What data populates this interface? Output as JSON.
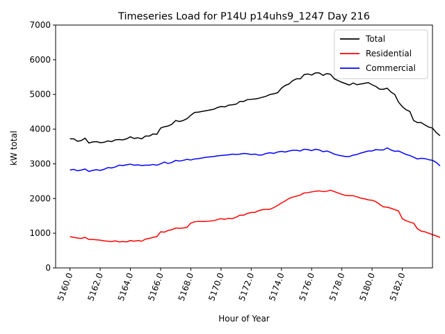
{
  "chart_data": {
    "type": "line",
    "title": "Timeseries Load for P14U p14uhs9_1247  Day 216",
    "xlabel": "Hour of Year",
    "ylabel": "kW total",
    "xlim": [
      5159.05,
      5184.0
    ],
    "ylim": [
      0,
      7000
    ],
    "xticks": [
      5160,
      5162,
      5164,
      5166,
      5168,
      5170,
      5172,
      5174,
      5176,
      5178,
      5180,
      5182
    ],
    "xtick_labels": [
      "5160.0",
      "5162.0",
      "5164.0",
      "5166.0",
      "5168.0",
      "5170.0",
      "5172.0",
      "5174.0",
      "5176.0",
      "5178.0",
      "5180.0",
      "5182.0"
    ],
    "yticks": [
      0,
      1000,
      2000,
      3000,
      4000,
      5000,
      6000,
      7000
    ],
    "ytick_labels": [
      "0",
      "1000",
      "2000",
      "3000",
      "4000",
      "5000",
      "6000",
      "7000"
    ],
    "x_start": 5160,
    "x_step": 0.25,
    "legend_position": "top-right",
    "grid": false,
    "series": [
      {
        "name": "Total",
        "color": "#000000",
        "values": [
          3720,
          3720,
          3650,
          3670,
          3740,
          3600,
          3630,
          3640,
          3610,
          3620,
          3660,
          3640,
          3690,
          3700,
          3690,
          3720,
          3780,
          3730,
          3750,
          3720,
          3800,
          3800,
          3860,
          3850,
          4030,
          4070,
          4090,
          4140,
          4250,
          4220,
          4250,
          4300,
          4400,
          4480,
          4490,
          4510,
          4530,
          4550,
          4570,
          4620,
          4650,
          4640,
          4690,
          4700,
          4720,
          4800,
          4800,
          4850,
          4860,
          4870,
          4890,
          4920,
          4950,
          5000,
          5020,
          5050,
          5180,
          5260,
          5300,
          5400,
          5450,
          5450,
          5570,
          5590,
          5560,
          5620,
          5620,
          5550,
          5600,
          5580,
          5450,
          5400,
          5350,
          5310,
          5270,
          5330,
          5280,
          5300,
          5320,
          5340,
          5280,
          5230,
          5150,
          5150,
          5180,
          5070,
          5000,
          4780,
          4650,
          4560,
          4510,
          4250,
          4190,
          4190,
          4120,
          4060,
          4030,
          3900,
          3810
        ]
      },
      {
        "name": "Residential",
        "color": "#ff0000",
        "values": [
          900,
          880,
          860,
          850,
          880,
          820,
          820,
          810,
          800,
          780,
          770,
          760,
          780,
          750,
          760,
          750,
          790,
          770,
          790,
          770,
          830,
          850,
          880,
          900,
          1040,
          1030,
          1080,
          1100,
          1150,
          1140,
          1150,
          1170,
          1290,
          1330,
          1340,
          1340,
          1340,
          1350,
          1360,
          1390,
          1420,
          1400,
          1430,
          1420,
          1460,
          1520,
          1520,
          1570,
          1600,
          1600,
          1650,
          1680,
          1690,
          1690,
          1740,
          1800,
          1870,
          1930,
          2000,
          2040,
          2070,
          2100,
          2160,
          2170,
          2190,
          2210,
          2220,
          2200,
          2210,
          2240,
          2200,
          2160,
          2120,
          2090,
          2080,
          2080,
          2050,
          2010,
          1990,
          1960,
          1950,
          1910,
          1830,
          1760,
          1750,
          1720,
          1680,
          1640,
          1420,
          1360,
          1320,
          1290,
          1130,
          1060,
          1040,
          1000,
          960,
          920,
          880
        ]
      },
      {
        "name": "Commercial",
        "color": "#0000ff",
        "values": [
          2820,
          2840,
          2800,
          2820,
          2850,
          2780,
          2810,
          2830,
          2810,
          2840,
          2890,
          2880,
          2910,
          2960,
          2950,
          2970,
          2990,
          2960,
          2970,
          2950,
          2960,
          2960,
          2980,
          2960,
          3000,
          3050,
          3010,
          3040,
          3100,
          3080,
          3100,
          3130,
          3110,
          3140,
          3150,
          3170,
          3190,
          3200,
          3210,
          3230,
          3240,
          3250,
          3260,
          3280,
          3270,
          3280,
          3300,
          3290,
          3270,
          3280,
          3250,
          3260,
          3300,
          3320,
          3300,
          3340,
          3360,
          3340,
          3370,
          3390,
          3390,
          3370,
          3420,
          3410,
          3380,
          3420,
          3400,
          3350,
          3370,
          3330,
          3280,
          3250,
          3230,
          3210,
          3210,
          3250,
          3270,
          3310,
          3340,
          3370,
          3370,
          3410,
          3400,
          3400,
          3460,
          3400,
          3360,
          3370,
          3320,
          3270,
          3240,
          3190,
          3140,
          3160,
          3150,
          3120,
          3100,
          3040,
          2940
        ]
      }
    ]
  }
}
